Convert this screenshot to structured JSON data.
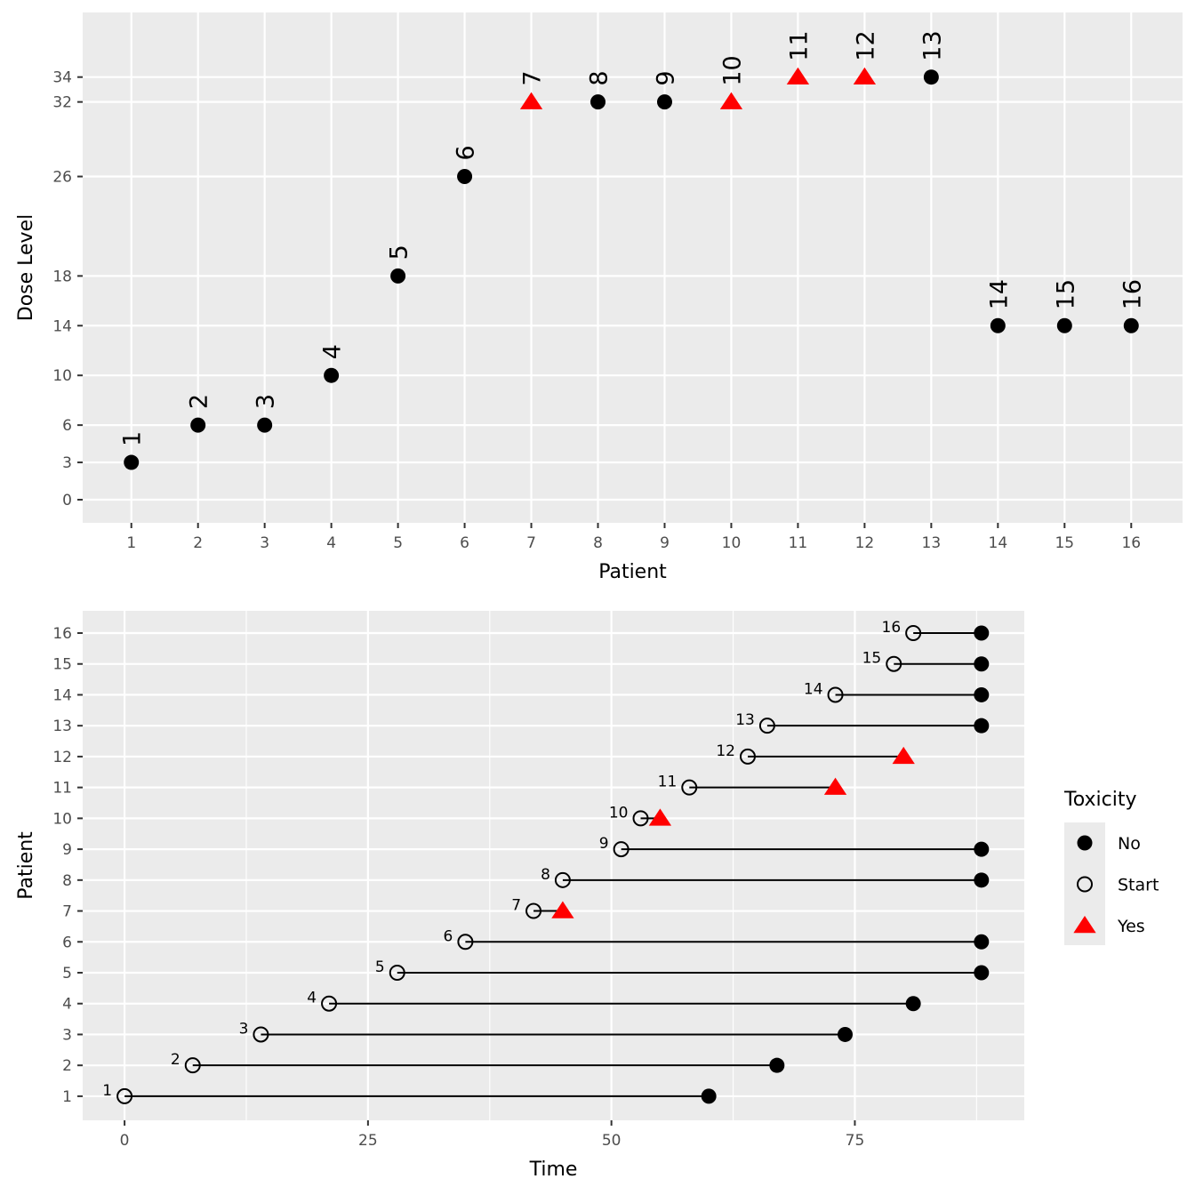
{
  "colors": {
    "panel": "#EBEBEB",
    "grid": "#FFFFFF",
    "no": "#000000",
    "yes": "#FF0000",
    "tick_text": "#4D4D4D"
  },
  "chart_data": [
    {
      "type": "scatter",
      "xlabel": "Patient",
      "ylabel": "Dose Level",
      "xlim": [
        0.27,
        16.77
      ],
      "ylim": [
        -1.86,
        39.2
      ],
      "x_ticks": [
        1,
        2,
        3,
        4,
        5,
        6,
        7,
        8,
        9,
        10,
        11,
        12,
        13,
        14,
        15,
        16
      ],
      "y_ticks": [
        0,
        3,
        6,
        10,
        14,
        18,
        26,
        32,
        34
      ],
      "grid": true,
      "points": [
        {
          "patient": 1,
          "dose": 3,
          "toxicity": "No",
          "label": "1"
        },
        {
          "patient": 2,
          "dose": 6,
          "toxicity": "No",
          "label": "2"
        },
        {
          "patient": 3,
          "dose": 6,
          "toxicity": "No",
          "label": "3"
        },
        {
          "patient": 4,
          "dose": 10,
          "toxicity": "No",
          "label": "4"
        },
        {
          "patient": 5,
          "dose": 18,
          "toxicity": "No",
          "label": "5"
        },
        {
          "patient": 6,
          "dose": 26,
          "toxicity": "No",
          "label": "6"
        },
        {
          "patient": 7,
          "dose": 32,
          "toxicity": "Yes",
          "label": "7"
        },
        {
          "patient": 8,
          "dose": 32,
          "toxicity": "No",
          "label": "8"
        },
        {
          "patient": 9,
          "dose": 32,
          "toxicity": "No",
          "label": "9"
        },
        {
          "patient": 10,
          "dose": 32,
          "toxicity": "Yes",
          "label": "10"
        },
        {
          "patient": 11,
          "dose": 34,
          "toxicity": "Yes",
          "label": "11"
        },
        {
          "patient": 12,
          "dose": 34,
          "toxicity": "Yes",
          "label": "12"
        },
        {
          "patient": 13,
          "dose": 34,
          "toxicity": "No",
          "label": "13"
        },
        {
          "patient": 14,
          "dose": 14,
          "toxicity": "No",
          "label": "14"
        },
        {
          "patient": 15,
          "dose": 14,
          "toxicity": "No",
          "label": "15"
        },
        {
          "patient": 16,
          "dose": 14,
          "toxicity": "No",
          "label": "16"
        }
      ]
    },
    {
      "type": "line",
      "xlabel": "Time",
      "ylabel": "Patient",
      "xlim": [
        -4.3,
        92.4
      ],
      "ylim": [
        0.22,
        16.72
      ],
      "x_ticks": [
        0,
        25,
        50,
        75
      ],
      "x_minor_ticks": [
        12.5,
        37.5,
        62.5,
        87.5
      ],
      "y_ticks": [
        1,
        2,
        3,
        4,
        5,
        6,
        7,
        8,
        9,
        10,
        11,
        12,
        13,
        14,
        15,
        16
      ],
      "grid": true,
      "legend": {
        "title": "Toxicity",
        "position": "right",
        "entries": [
          "No",
          "Start",
          "Yes"
        ]
      },
      "segments": [
        {
          "patient": 1,
          "start": 0,
          "end": 60,
          "toxicity": "No",
          "label": "1"
        },
        {
          "patient": 2,
          "start": 7,
          "end": 67,
          "toxicity": "No",
          "label": "2"
        },
        {
          "patient": 3,
          "start": 14,
          "end": 74,
          "toxicity": "No",
          "label": "3"
        },
        {
          "patient": 4,
          "start": 21,
          "end": 81,
          "toxicity": "No",
          "label": "4"
        },
        {
          "patient": 5,
          "start": 28,
          "end": 88,
          "toxicity": "No",
          "label": "5"
        },
        {
          "patient": 6,
          "start": 35,
          "end": 88,
          "toxicity": "No",
          "label": "6"
        },
        {
          "patient": 7,
          "start": 42,
          "end": 45,
          "toxicity": "Yes",
          "label": "7"
        },
        {
          "patient": 8,
          "start": 45,
          "end": 88,
          "toxicity": "No",
          "label": "8"
        },
        {
          "patient": 9,
          "start": 51,
          "end": 88,
          "toxicity": "No",
          "label": "9"
        },
        {
          "patient": 10,
          "start": 53,
          "end": 55,
          "toxicity": "Yes",
          "label": "10"
        },
        {
          "patient": 11,
          "start": 58,
          "end": 73,
          "toxicity": "Yes",
          "label": "11"
        },
        {
          "patient": 12,
          "start": 64,
          "end": 80,
          "toxicity": "Yes",
          "label": "12"
        },
        {
          "patient": 13,
          "start": 66,
          "end": 88,
          "toxicity": "No",
          "label": "13"
        },
        {
          "patient": 14,
          "start": 73,
          "end": 88,
          "toxicity": "No",
          "label": "14"
        },
        {
          "patient": 15,
          "start": 79,
          "end": 88,
          "toxicity": "No",
          "label": "15"
        },
        {
          "patient": 16,
          "start": 81,
          "end": 88,
          "toxicity": "No",
          "label": "16"
        }
      ]
    }
  ]
}
